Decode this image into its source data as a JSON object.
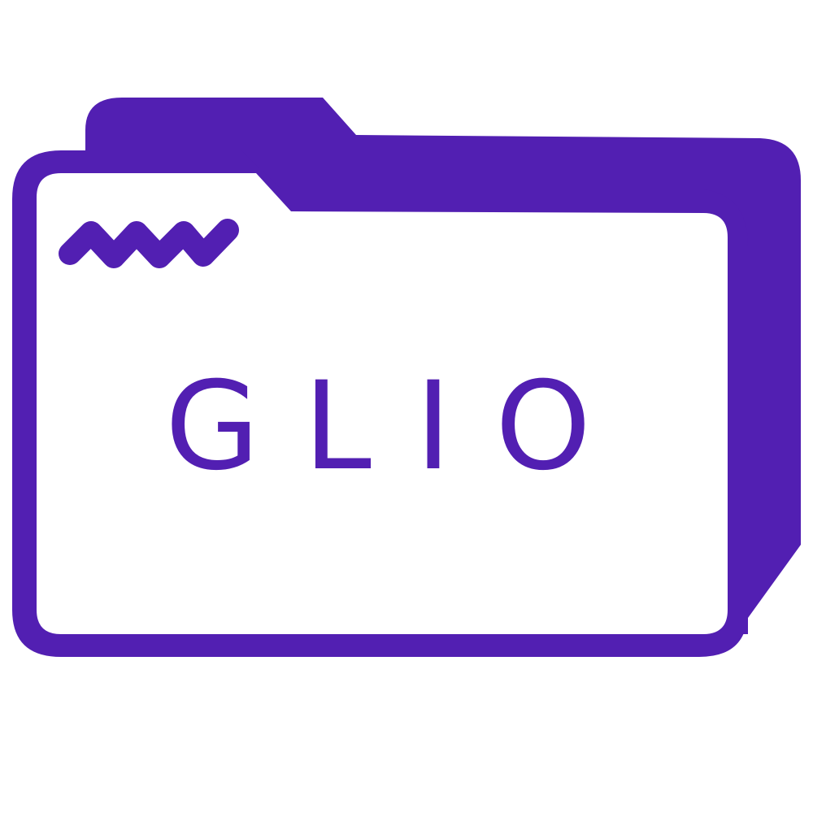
{
  "folder_icon": {
    "icon": "folder-icon",
    "color": "#521FB2",
    "background": "#FFFFFF",
    "logo_text": "GLIO",
    "wave_icon": "wave-squiggle-icon"
  }
}
